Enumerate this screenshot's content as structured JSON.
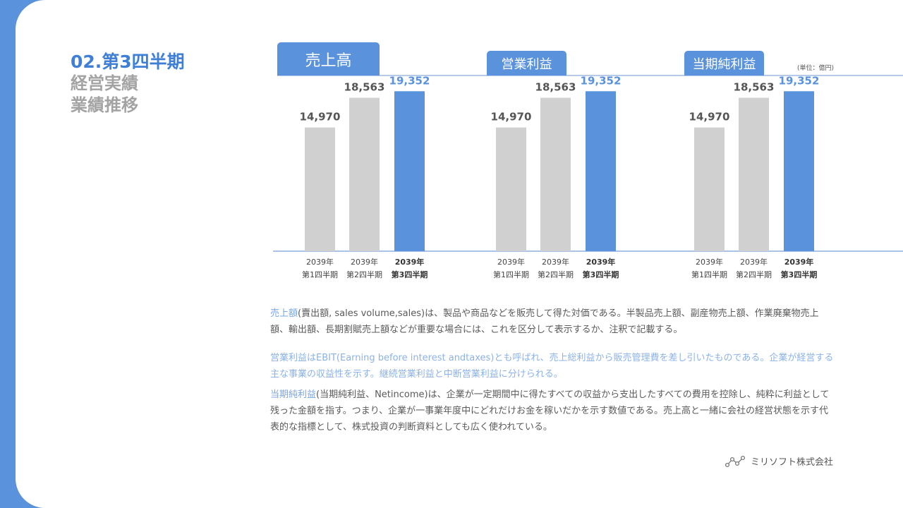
{
  "heading": {
    "line1": "02.第3四半期",
    "line2": "経営実績",
    "line3": "業績推移"
  },
  "unit_label": "(単位：億円)",
  "chart_data": [
    {
      "type": "bar",
      "title": "売上高",
      "categories": [
        "2039年\n第1四半期",
        "2039年\n第2四半期",
        "2039年\n第3四半期"
      ],
      "values": [
        14970,
        18563,
        19352
      ],
      "value_labels": [
        "14,970",
        "18,563",
        "19,352"
      ],
      "colors": [
        "#d0d0d0",
        "#d0d0d0",
        "#5b92dc"
      ],
      "ylim": [
        0,
        21000
      ]
    },
    {
      "type": "bar",
      "title": "営業利益",
      "categories": [
        "2039年\n第1四半期",
        "2039年\n第2四半期",
        "2039年\n第3四半期"
      ],
      "values": [
        14970,
        18563,
        19352
      ],
      "value_labels": [
        "14,970",
        "18,563",
        "19,352"
      ],
      "colors": [
        "#d0d0d0",
        "#d0d0d0",
        "#5b92dc"
      ],
      "ylim": [
        0,
        21000
      ]
    },
    {
      "type": "bar",
      "title": "当期純利益",
      "categories": [
        "2039年\n第1四半期",
        "2039年\n第2四半期",
        "2039年\n第3四半期"
      ],
      "values": [
        14970,
        18563,
        19352
      ],
      "value_labels": [
        "14,970",
        "18,563",
        "19,352"
      ],
      "colors": [
        "#d0d0d0",
        "#d0d0d0",
        "#5b92dc"
      ],
      "ylim": [
        0,
        21000
      ]
    }
  ],
  "notes": {
    "p1_term": "売上額",
    "p1_text": "(賣出額, sales volume,sales)は、製品や商品などを販売して得た対価である。半製品売上額、副産物売上額、作業廃棄物売上額、輸出額、長期割賦売上額などが重要な場合には、これを区分して表示するか、注釈で記載する。",
    "p2_text": "営業利益はEBIT(Earning before interest andtaxes)とも呼ばれ、売上総利益から販売管理費を差し引いたものである。企業が経営する主な事業の収益性を示す。継続営業利益と中断営業利益に分けられる。",
    "p3_term": "当期純利益",
    "p3_text": "(当期純利益、Netincome)は、企業が一定期間中に得たすべての収益から支出したすべての費用を控除し、純粋に利益として残った金額を指す。つまり、企業が一事業年度中にどれだけお金を稼いだかを示す数値である。売上高と一緒に会社の経営状態を示す代表的な指標として、株式投資の判断資料としても広く使われている。"
  },
  "brand": {
    "name": "ミリソフト株式会社",
    "icon": "network-logo-icon"
  }
}
